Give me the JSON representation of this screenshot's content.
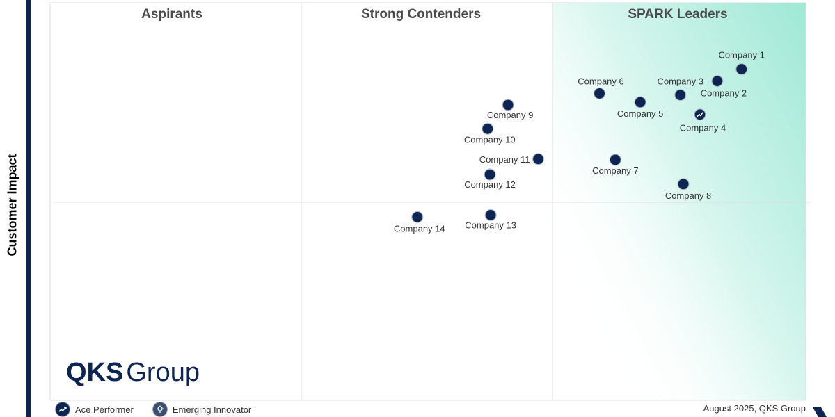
{
  "chart_data": {
    "type": "scatter",
    "ylabel": "Customer Impact",
    "xlabel": "",
    "quadrants": [
      "Aspirants",
      "Strong Contenders",
      "SPARK Leaders"
    ],
    "xlim": [
      0,
      100
    ],
    "ylim": [
      0,
      100
    ],
    "points": [
      {
        "label": "Company 1",
        "x": 91.5,
        "y": 83.3,
        "marker": "ace"
      },
      {
        "label": "Company 2",
        "x": 88.3,
        "y": 80.3,
        "marker": "ace"
      },
      {
        "label": "Company 3",
        "x": 83.4,
        "y": 76.8,
        "marker": "ace"
      },
      {
        "label": "Company 4",
        "x": 86.0,
        "y": 71.9,
        "marker": "ace-performer"
      },
      {
        "label": "Company 5",
        "x": 78.1,
        "y": 75.0,
        "marker": "ace"
      },
      {
        "label": "Company 6",
        "x": 72.7,
        "y": 77.2,
        "marker": "ace"
      },
      {
        "label": "Company 7",
        "x": 74.8,
        "y": 60.5,
        "marker": "ace"
      },
      {
        "label": "Company 8",
        "x": 83.8,
        "y": 54.4,
        "marker": "ace"
      },
      {
        "label": "Company 9",
        "x": 60.6,
        "y": 74.3,
        "marker": "ace"
      },
      {
        "label": "Company 10",
        "x": 57.9,
        "y": 68.3,
        "marker": "ace"
      },
      {
        "label": "Company 11",
        "x": 64.6,
        "y": 60.7,
        "marker": "ace"
      },
      {
        "label": "Company 12",
        "x": 58.2,
        "y": 56.8,
        "marker": "ace"
      },
      {
        "label": "Company 13",
        "x": 58.3,
        "y": 46.6,
        "marker": "ace"
      },
      {
        "label": "Company 14",
        "x": 48.6,
        "y": 46.1,
        "marker": "ace"
      }
    ],
    "legend": [
      "Ace Performer",
      "Emerging Innovator"
    ]
  },
  "footer_note": "August 2025, QKS Group",
  "brand": {
    "bold": "QKS",
    "thin": "Group"
  },
  "colors": {
    "marker": "#0d2552",
    "leader_gradient": "#9fe8d6",
    "grid": "#dddddd"
  }
}
